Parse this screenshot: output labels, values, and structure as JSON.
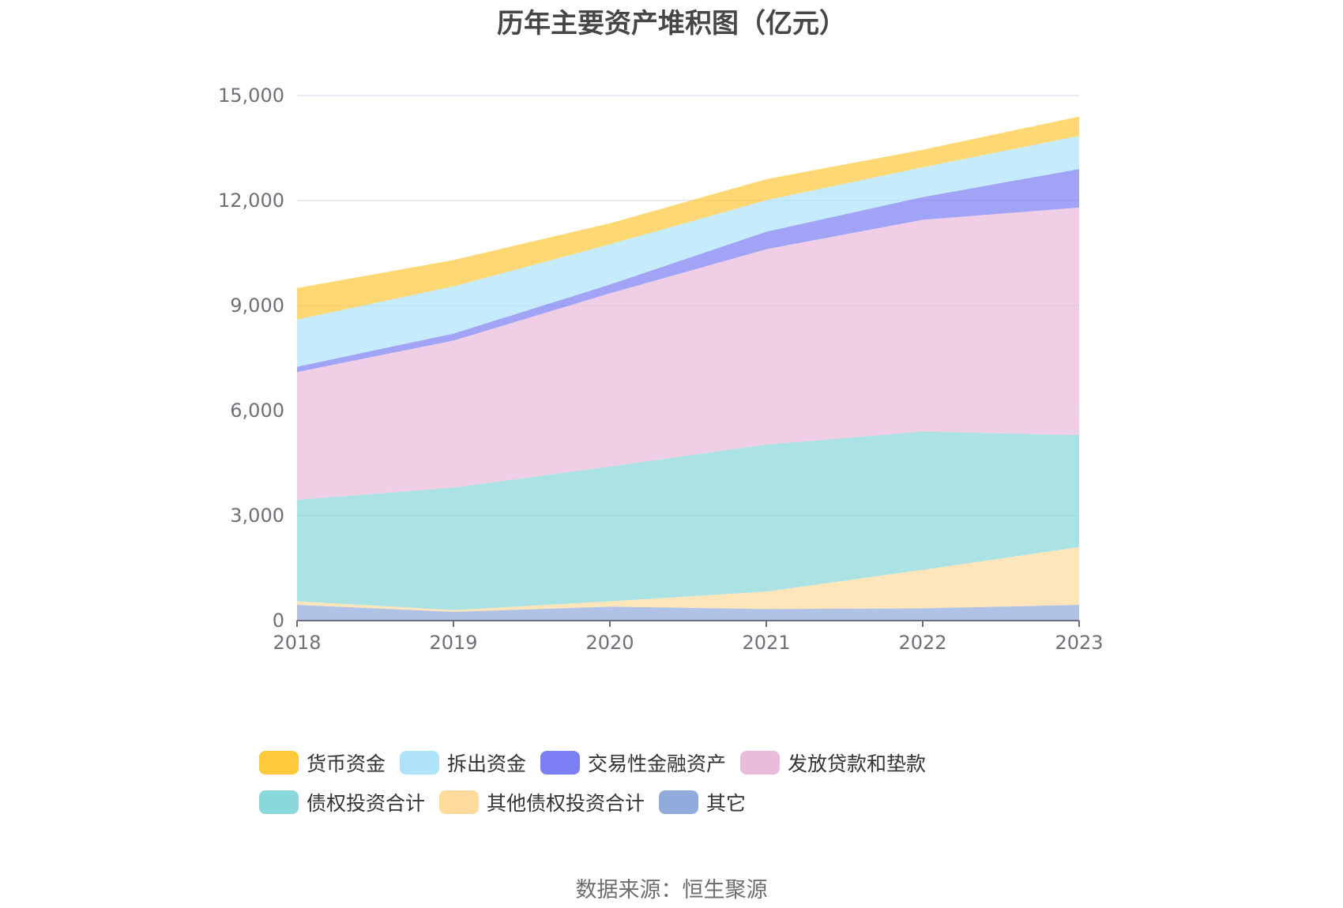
{
  "chart_data": {
    "type": "area",
    "title": "历年主要资产堆积图（亿元）",
    "xlabel": "",
    "ylabel": "",
    "categories": [
      "2018",
      "2019",
      "2020",
      "2021",
      "2022",
      "2023"
    ],
    "ylim": [
      0,
      15000
    ],
    "yticks": [
      0,
      3000,
      6000,
      9000,
      12000,
      15000
    ],
    "ytick_labels": [
      "0",
      "3,000",
      "6,000",
      "9,000",
      "12,000",
      "15,000"
    ],
    "stacked": true,
    "grid": true,
    "legend_position": "bottom",
    "series": [
      {
        "name": "其它",
        "color": "#91acdc",
        "values": [
          450,
          250,
          400,
          330,
          350,
          450
        ]
      },
      {
        "name": "其他债权投资合计",
        "color": "#ffdb9e",
        "values": [
          100,
          50,
          150,
          500,
          1100,
          1650
        ]
      },
      {
        "name": "债权投资合计",
        "color": "#8ad8da",
        "values": [
          2900,
          3500,
          3850,
          4200,
          3950,
          3200
        ]
      },
      {
        "name": "发放贷款和垫款",
        "color": "#eabcdc",
        "values": [
          3650,
          4200,
          4950,
          5580,
          6050,
          6500
        ]
      },
      {
        "name": "交易性金融资产",
        "color": "#7b7ff3",
        "values": [
          150,
          200,
          250,
          500,
          650,
          1100
        ]
      },
      {
        "name": "拆出资金",
        "color": "#aee3fb",
        "values": [
          1350,
          1350,
          1150,
          900,
          850,
          950
        ]
      },
      {
        "name": "货币资金",
        "color": "#ffc93d",
        "values": [
          900,
          750,
          600,
          600,
          500,
          550
        ]
      }
    ]
  },
  "legend": [
    {
      "label": "货币资金",
      "color": "#ffc93d"
    },
    {
      "label": "拆出资金",
      "color": "#aee3fb"
    },
    {
      "label": "交易性金融资产",
      "color": "#7b7ff3"
    },
    {
      "label": "发放贷款和垫款",
      "color": "#eabcdc"
    },
    {
      "label": "债权投资合计",
      "color": "#8ad8da"
    },
    {
      "label": "其他债权投资合计",
      "color": "#ffdb9e"
    },
    {
      "label": "其它",
      "color": "#91acdc"
    }
  ],
  "source": "数据来源：恒生聚源"
}
